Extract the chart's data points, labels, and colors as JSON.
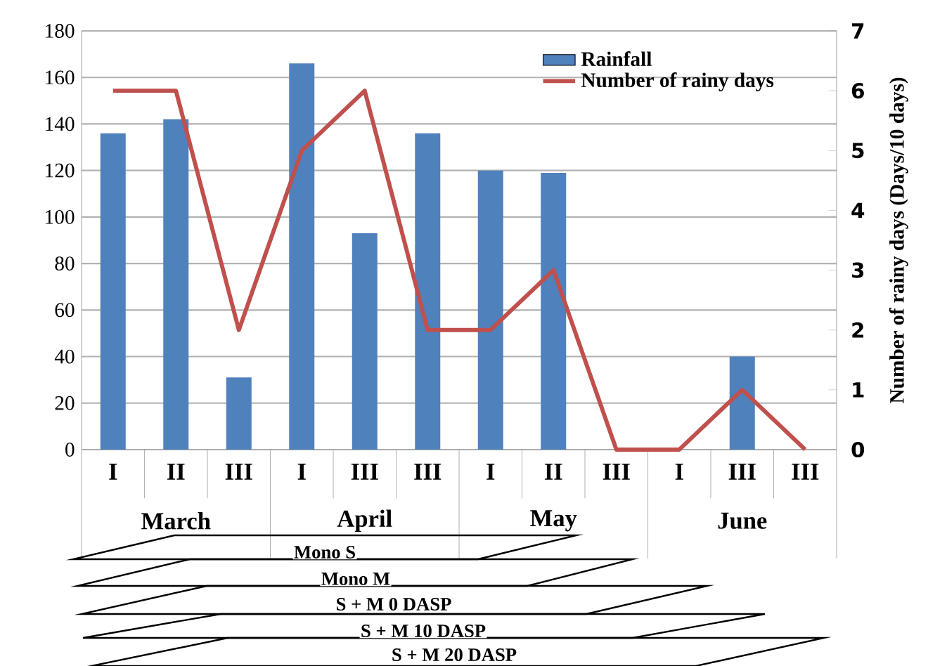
{
  "chart_data": {
    "type": "bar",
    "categories": [
      "I",
      "II",
      "III",
      "I",
      "III",
      "III",
      "I",
      "II",
      "III",
      "I",
      "III",
      "III"
    ],
    "series": [
      {
        "name": "Rainfall",
        "color": "#4f81bd",
        "values": [
          136,
          142,
          31,
          166,
          93,
          136,
          120,
          119,
          0,
          0,
          40,
          0
        ]
      },
      {
        "name": "Number of rainy days",
        "type": "line",
        "axis": "y2",
        "color": "#c0504d",
        "values": [
          6,
          6,
          2,
          5,
          6,
          2,
          2,
          3,
          0,
          0,
          1,
          0
        ]
      }
    ],
    "ylim": [
      0,
      180
    ],
    "yticks": [
      0,
      20,
      40,
      60,
      80,
      100,
      120,
      140,
      160,
      180
    ],
    "y2lim": [
      0,
      7
    ],
    "y2ticks": [
      0,
      1,
      2,
      3,
      4,
      5,
      6,
      7
    ],
    "y2label": "Number of rainy days (Days/10 days)",
    "grid": "y",
    "legend": "top right",
    "marker": "none",
    "line_style": "solid",
    "annotations": [
      "March",
      "April",
      "May",
      "June",
      "Mono S",
      "Mono M",
      "S + M 0 DASP",
      "S + M 10 DASP",
      "S + M 20 DASP"
    ]
  }
}
